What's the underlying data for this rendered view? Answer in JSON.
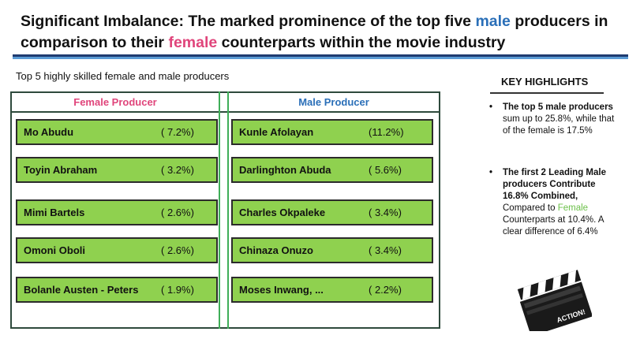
{
  "title": {
    "part1": "Significant Imbalance: The marked prominence of the top five ",
    "male_word": "male",
    "part2": " producers in comparison to their ",
    "female_word": "female",
    "part3": " counterparts within the movie industry"
  },
  "subtitle": "Top 5 highly skilled female and male producers",
  "chart_data": {
    "type": "table",
    "columns": [
      "Female Producer",
      "Male Producer"
    ],
    "female": [
      {
        "name": "Mo Abudu",
        "pct_label": "( 7.2%)",
        "value": 7.2
      },
      {
        "name": "Toyin Abraham",
        "pct_label": "( 3.2%)",
        "value": 3.2
      },
      {
        "name": "Mimi Bartels",
        "pct_label": "( 2.6%)",
        "value": 2.6
      },
      {
        "name": "Omoni Oboli",
        "pct_label": "( 2.6%)",
        "value": 2.6
      },
      {
        "name": "Bolanle Austen - Peters",
        "pct_label": "( 1.9%)",
        "value": 1.9
      }
    ],
    "male": [
      {
        "name": "Kunle Afolayan",
        "pct_label": "(11.2%)",
        "value": 11.2
      },
      {
        "name": "Darlinghton Abuda",
        "pct_label": "( 5.6%)",
        "value": 5.6
      },
      {
        "name": "Charles Okpaleke",
        "pct_label": "( 3.4%)",
        "value": 3.4
      },
      {
        "name": "Chinaza Onuzo",
        "pct_label": "( 3.4%)",
        "value": 3.4
      },
      {
        "name": "Moses Inwang, ...",
        "pct_label": "( 2.2%)",
        "value": 2.2
      }
    ]
  },
  "highlights": {
    "heading": "KEY HIGHLIGHTS",
    "items": [
      {
        "bold_lead": "The top 5 male producers",
        "rest": " sum up to 25.8%, while that of the female is 17.5%"
      },
      {
        "bold_lead": "The first 2 Leading Male producers Contribute 16.8% Combined,",
        "mid": " Compared to ",
        "green_word": "Female",
        "tail": " Counterparts at 10.4%. A clear difference of 6.4%"
      }
    ]
  },
  "clapperboard": {
    "label": "ACTION!"
  },
  "colors": {
    "male": "#2a6fb8",
    "female": "#e0457b",
    "cell_fill": "#8fd14f",
    "divider": "#3fae58",
    "highlight_green": "#6cc04a"
  }
}
